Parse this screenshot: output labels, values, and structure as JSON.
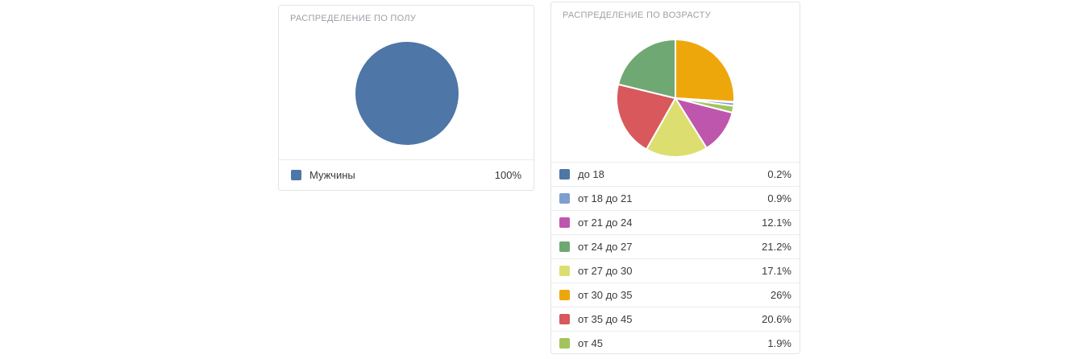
{
  "colors": {
    "card_border": "#e4e4e4",
    "divider": "#ececec",
    "title_text": "#9ba0a6",
    "label_text": "#3a3a3a",
    "slice_border": "#ffffff"
  },
  "chart_data": [
    {
      "type": "pie",
      "title": "РАСПРЕДЕЛЕНИЕ ПО ПОЛУ",
      "labels": [
        "Мужчины"
      ],
      "values": [
        100
      ],
      "value_labels": [
        "100%"
      ],
      "colors": [
        "#4e76a7"
      ],
      "legend_position": "bottom",
      "grid": false
    },
    {
      "type": "pie",
      "title": "РАСПРЕДЕЛЕНИЕ ПО ВОЗРАСТУ",
      "labels": [
        "до 18",
        "от 18 до 21",
        "от 21 до 24",
        "от 24 до 27",
        "от 27 до 30",
        "от 30 до 35",
        "от 35 до 45",
        "от 45"
      ],
      "values": [
        0.2,
        0.9,
        12.1,
        21.2,
        17.1,
        26,
        20.6,
        1.9
      ],
      "value_labels": [
        "0.2%",
        "0.9%",
        "12.1%",
        "21.2%",
        "17.1%",
        "26%",
        "20.6%",
        "1.9%"
      ],
      "colors": [
        "#4e76a7",
        "#7e9ecf",
        "#bf56ae",
        "#6fa873",
        "#dcdf70",
        "#eea70b",
        "#d8585c",
        "#a3c35e"
      ],
      "draw_order_clockwise_from_top": [
        5,
        0,
        1,
        7,
        2,
        4,
        6,
        3
      ],
      "legend_position": "bottom",
      "grid": false
    }
  ]
}
